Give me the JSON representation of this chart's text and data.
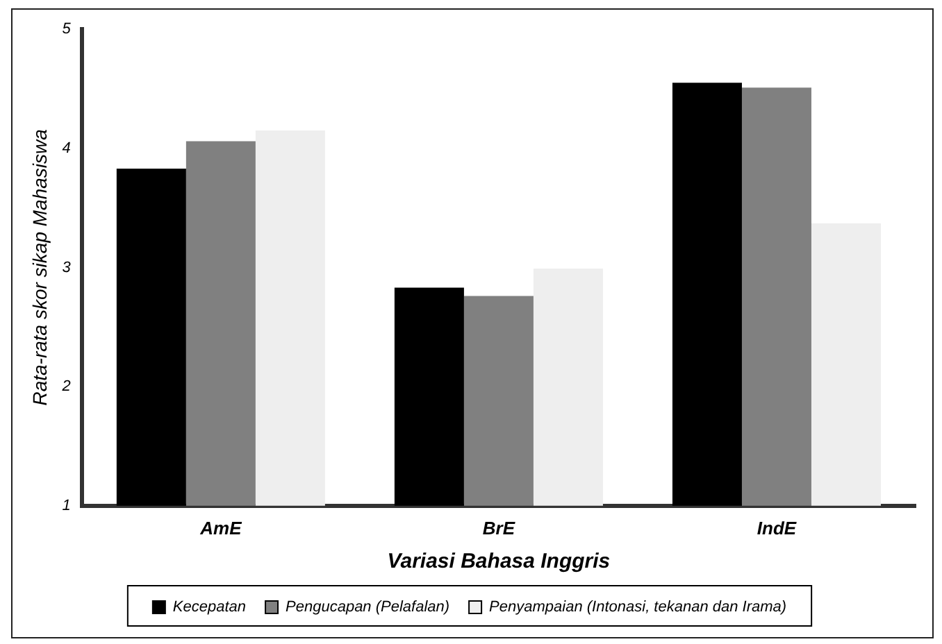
{
  "chart_data": {
    "type": "bar",
    "xlabel": "Variasi Bahasa Inggris",
    "ylabel": "Rata-rata skor sikap Mahasiswa",
    "categories": [
      "AmE",
      "BrE",
      "IndE"
    ],
    "series": [
      {
        "name": "Kecepatan",
        "color": "#000000",
        "values": [
          3.83,
          2.83,
          4.55
        ]
      },
      {
        "name": "Pengucapan (Pelafalan)",
        "color": "#808080",
        "values": [
          4.06,
          2.76,
          4.51
        ]
      },
      {
        "name": "Penyampaian (Intonasi, tekanan dan Irama)",
        "color": "#eeeeee",
        "values": [
          4.15,
          2.99,
          3.37
        ]
      }
    ],
    "ylim": [
      1,
      5
    ],
    "yticks": [
      1,
      2,
      3,
      4,
      5
    ],
    "grid": false,
    "legend": "bottom"
  }
}
